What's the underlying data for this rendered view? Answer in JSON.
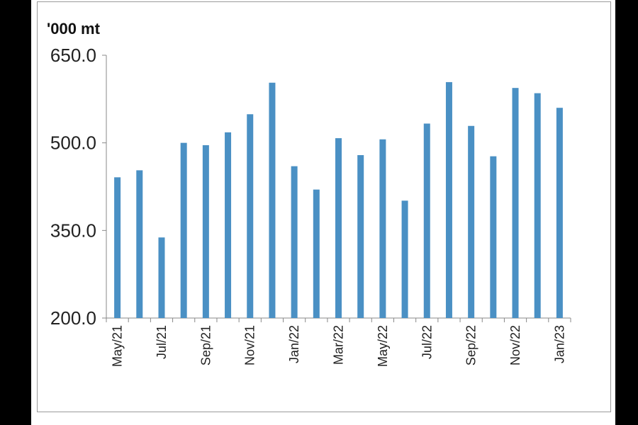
{
  "chart_data": {
    "type": "bar",
    "unit_label": "'000 mt",
    "y_ticks": [
      "650.0",
      "500.0",
      "350.0",
      "200.0"
    ],
    "ylim": [
      200,
      650
    ],
    "categories": [
      "May/21",
      "Jun/21",
      "Jul/21",
      "Aug/21",
      "Sep/21",
      "Oct/21",
      "Nov/21",
      "Dec/21",
      "Jan/22",
      "Feb/22",
      "Mar/22",
      "Apr/22",
      "May/22",
      "Jun/22",
      "Jul/22",
      "Aug/22",
      "Sep/22",
      "Oct/22",
      "Nov/22",
      "Dec/22",
      "Jan/23"
    ],
    "x_tick_labels": [
      "May/21",
      "Jul/21",
      "Sep/21",
      "Nov/21",
      "Jan/22",
      "Mar/22",
      "May/22",
      "Jul/22",
      "Sep/22",
      "Nov/22",
      "Jan/23"
    ],
    "values": [
      441,
      453,
      338,
      500,
      496,
      518,
      549,
      603,
      460,
      420,
      508,
      479,
      506,
      401,
      533,
      604,
      529,
      477,
      594,
      585,
      560
    ],
    "bar_color": "#4a90c4",
    "grid": false
  }
}
